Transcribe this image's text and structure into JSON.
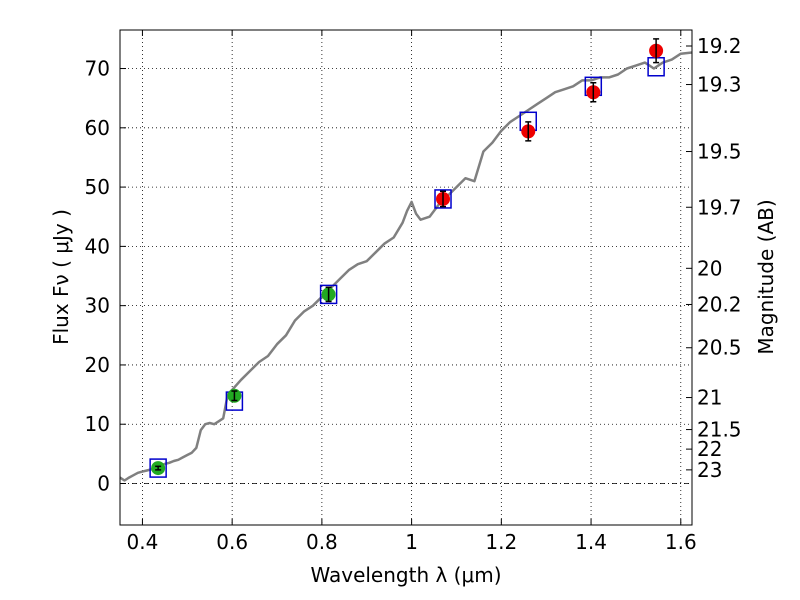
{
  "chart_data": {
    "type": "scatter",
    "title": "",
    "xlabel": "Wavelength  λ (μm)",
    "ylabel": "Flux  Fν (  μJy )",
    "ylabel_right": "Magnitude (AB)",
    "xlim": [
      0.35,
      1.625
    ],
    "ylim": [
      -7,
      76.5
    ],
    "x_ticks": [
      0.4,
      0.6,
      0.8,
      1.0,
      1.2,
      1.4,
      1.6
    ],
    "x_tick_labels": [
      "0.4",
      "0.6",
      "0.8",
      "1",
      "1.2",
      "1.4",
      "1.6"
    ],
    "y_ticks": [
      0,
      10,
      20,
      30,
      40,
      50,
      60,
      70
    ],
    "y_tick_labels": [
      "0",
      "10",
      "20",
      "30",
      "40",
      "50",
      "60",
      "70"
    ],
    "right_ticks": [
      {
        "label": "19.2",
        "flux": 73.8
      },
      {
        "label": "19.3",
        "flux": 67.3
      },
      {
        "label": "19.5",
        "flux": 56.0
      },
      {
        "label": "19.7",
        "flux": 46.6
      },
      {
        "label": "20",
        "flux": 36.3
      },
      {
        "label": "20.2",
        "flux": 30.2
      },
      {
        "label": "20.5",
        "flux": 22.9
      },
      {
        "label": "21",
        "flux": 14.5
      },
      {
        "label": "21.5",
        "flux": 9.1
      },
      {
        "label": "22",
        "flux": 5.8
      },
      {
        "label": "23",
        "flux": 2.3
      }
    ],
    "grid": true,
    "colors": {
      "model": "#808080",
      "observed_optical": "#22aa22",
      "observed_nir": "#ee0000",
      "synthetic_box": "#0000cc",
      "errorbar": "#000000",
      "zero_line": "#000000"
    },
    "series": [
      {
        "name": "model spectrum",
        "type": "line",
        "x": [
          0.35,
          0.36,
          0.37,
          0.38,
          0.39,
          0.4,
          0.41,
          0.42,
          0.43,
          0.44,
          0.45,
          0.46,
          0.47,
          0.48,
          0.49,
          0.5,
          0.51,
          0.52,
          0.53,
          0.54,
          0.55,
          0.56,
          0.57,
          0.58,
          0.59,
          0.6,
          0.62,
          0.64,
          0.66,
          0.68,
          0.7,
          0.72,
          0.74,
          0.76,
          0.78,
          0.8,
          0.82,
          0.84,
          0.86,
          0.88,
          0.9,
          0.92,
          0.94,
          0.96,
          0.98,
          0.99,
          1.0,
          1.01,
          1.02,
          1.04,
          1.06,
          1.08,
          1.1,
          1.12,
          1.14,
          1.16,
          1.18,
          1.2,
          1.22,
          1.24,
          1.26,
          1.28,
          1.3,
          1.32,
          1.34,
          1.36,
          1.38,
          1.4,
          1.42,
          1.44,
          1.46,
          1.48,
          1.5,
          1.52,
          1.54,
          1.56,
          1.58,
          1.6,
          1.625
        ],
        "y": [
          1.0,
          0.5,
          1.0,
          1.4,
          1.8,
          2.0,
          2.2,
          2.4,
          2.8,
          3.0,
          3.3,
          3.5,
          3.8,
          4.0,
          4.4,
          4.8,
          5.2,
          6.0,
          9.0,
          10.0,
          10.2,
          10.0,
          10.5,
          11.0,
          15.0,
          15.8,
          17.5,
          19.0,
          20.5,
          21.5,
          23.5,
          25.0,
          27.5,
          29.0,
          30.0,
          31.5,
          33.0,
          34.5,
          36.0,
          37.0,
          37.5,
          39.0,
          40.5,
          41.5,
          44.0,
          46.0,
          47.5,
          45.5,
          44.5,
          45.0,
          47.0,
          48.5,
          50.0,
          51.5,
          51.0,
          56.0,
          57.5,
          59.5,
          61.0,
          62.0,
          63.0,
          64.0,
          65.0,
          66.0,
          66.5,
          67.0,
          68.0,
          68.0,
          68.5,
          68.5,
          69.0,
          70.0,
          70.5,
          71.0,
          70.0,
          71.0,
          71.5,
          72.5,
          72.7
        ]
      },
      {
        "name": "synthetic photometry",
        "type": "box",
        "x": [
          0.435,
          0.605,
          0.815,
          1.07,
          1.26,
          1.405,
          1.545
        ],
        "y": [
          2.6,
          13.9,
          31.9,
          48.0,
          61.1,
          67.0,
          70.3
        ]
      },
      {
        "name": "observed optical",
        "type": "points",
        "x": [
          0.435,
          0.605,
          0.815
        ],
        "y": [
          2.6,
          14.8,
          31.9
        ],
        "yerr": [
          0.3,
          0.8,
          1.2
        ]
      },
      {
        "name": "observed NIR",
        "type": "points",
        "x": [
          1.07,
          1.26,
          1.405,
          1.545
        ],
        "y": [
          48.0,
          59.4,
          66.0,
          73.0
        ],
        "yerr": [
          1.3,
          1.6,
          1.6,
          2.0
        ]
      }
    ]
  }
}
